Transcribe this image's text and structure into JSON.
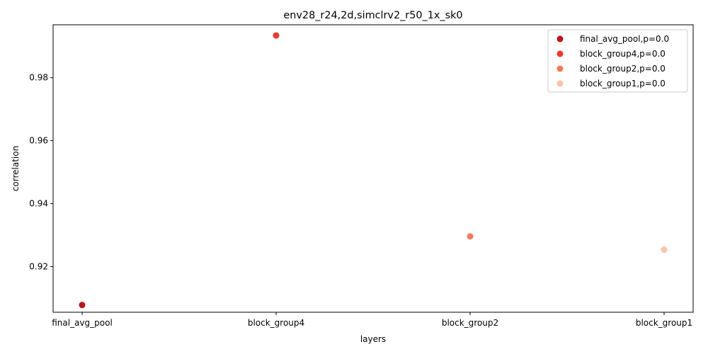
{
  "chart_data": {
    "type": "scatter",
    "title": "env28_r24,2d,simclrv2_r50_1x_sk0",
    "xlabel": "layers",
    "ylabel": "correlation",
    "categories": [
      "final_avg_pool",
      "block_group4",
      "block_group2",
      "block_group1"
    ],
    "ylim": [
      0.9055,
      0.9968
    ],
    "yticks": [
      "0.92",
      "0.94",
      "0.96",
      "0.98"
    ],
    "ytick_values": [
      0.92,
      0.94,
      0.96,
      0.98
    ],
    "grid": false,
    "legend_position": "top-right",
    "series": [
      {
        "name": "final_avg_pool,p=0.0",
        "category": "final_avg_pool",
        "value": 0.9078,
        "color": "#bb1419"
      },
      {
        "name": "block_group4,p=0.0",
        "category": "block_group4",
        "value": 0.9934,
        "color": "#e83b2f"
      },
      {
        "name": "block_group2,p=0.0",
        "category": "block_group2",
        "value": 0.9296,
        "color": "#f5785a"
      },
      {
        "name": "block_group1,p=0.0",
        "category": "block_group1",
        "value": 0.9254,
        "color": "#fcc3a8"
      }
    ]
  }
}
